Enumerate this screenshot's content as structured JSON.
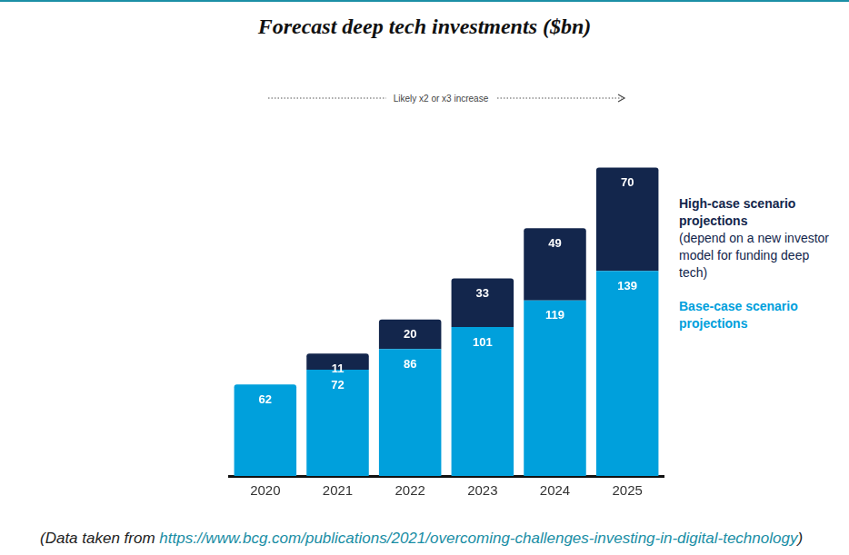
{
  "chart_data": {
    "type": "bar",
    "title": "Forecast deep tech investments ($bn)",
    "annotation": "Likely x2 or x3 increase",
    "source": {
      "prefix": "(Data taken from ",
      "link": "https://www.bcg.com/publications/2021/overcoming-challenges-investing-in-digital-technology",
      "suffix": ")"
    },
    "categories": [
      "2020",
      "2021",
      "2022",
      "2023",
      "2024",
      "2025"
    ],
    "series": [
      {
        "name": "Base-case scenario projections",
        "color": "#00a0dc",
        "values": [
          62,
          72,
          86,
          101,
          119,
          139
        ]
      },
      {
        "name": "High-case scenario projections",
        "note": "(depend on a new investor model for funding deep tech)",
        "color": "#13264c",
        "values": [
          null,
          11,
          20,
          33,
          49,
          70
        ]
      }
    ],
    "stacked": true,
    "data_labels": true,
    "tick_labels": "x",
    "grid": false,
    "legend": "right"
  }
}
